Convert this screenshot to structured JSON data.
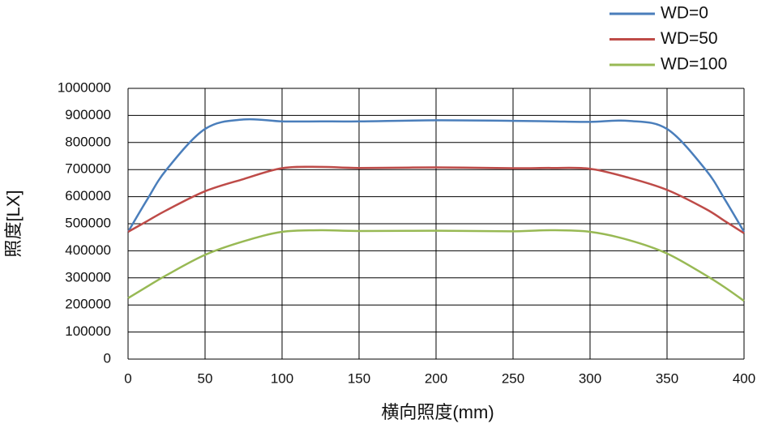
{
  "chart_data": {
    "type": "line",
    "x_label": "横向照度(mm)",
    "y_label": "照度[LX]",
    "x": [
      0,
      12.5,
      25,
      50,
      75,
      100,
      125,
      150,
      200,
      250,
      275,
      300,
      325,
      350,
      375,
      387.5,
      400
    ],
    "series": [
      {
        "name": "WD=0",
        "color": "#4a7ebb",
        "values": [
          470000,
          590000,
          700000,
          850000,
          885000,
          878000,
          878000,
          878000,
          882000,
          880000,
          878000,
          876000,
          880000,
          850000,
          700000,
          590000,
          470000
        ]
      },
      {
        "name": "WD=50",
        "color": "#be4b48",
        "values": [
          470000,
          510000,
          550000,
          620000,
          665000,
          705000,
          710000,
          706000,
          708000,
          705000,
          706000,
          703000,
          670000,
          625000,
          555000,
          510000,
          465000
        ]
      },
      {
        "name": "WD=100",
        "color": "#98b954",
        "values": [
          225000,
          268000,
          310000,
          385000,
          435000,
          470000,
          476000,
          473000,
          474000,
          472000,
          476000,
          470000,
          440000,
          390000,
          310000,
          265000,
          215000
        ]
      }
    ],
    "xlim": [
      0,
      400
    ],
    "xticks": [
      0,
      50,
      100,
      150,
      200,
      250,
      300,
      350,
      400
    ],
    "ylim": [
      0,
      1000000
    ],
    "yticks": [
      0,
      100000,
      200000,
      300000,
      400000,
      500000,
      600000,
      700000,
      800000,
      900000,
      1000000
    ],
    "grid": true,
    "legend": "top-right"
  }
}
